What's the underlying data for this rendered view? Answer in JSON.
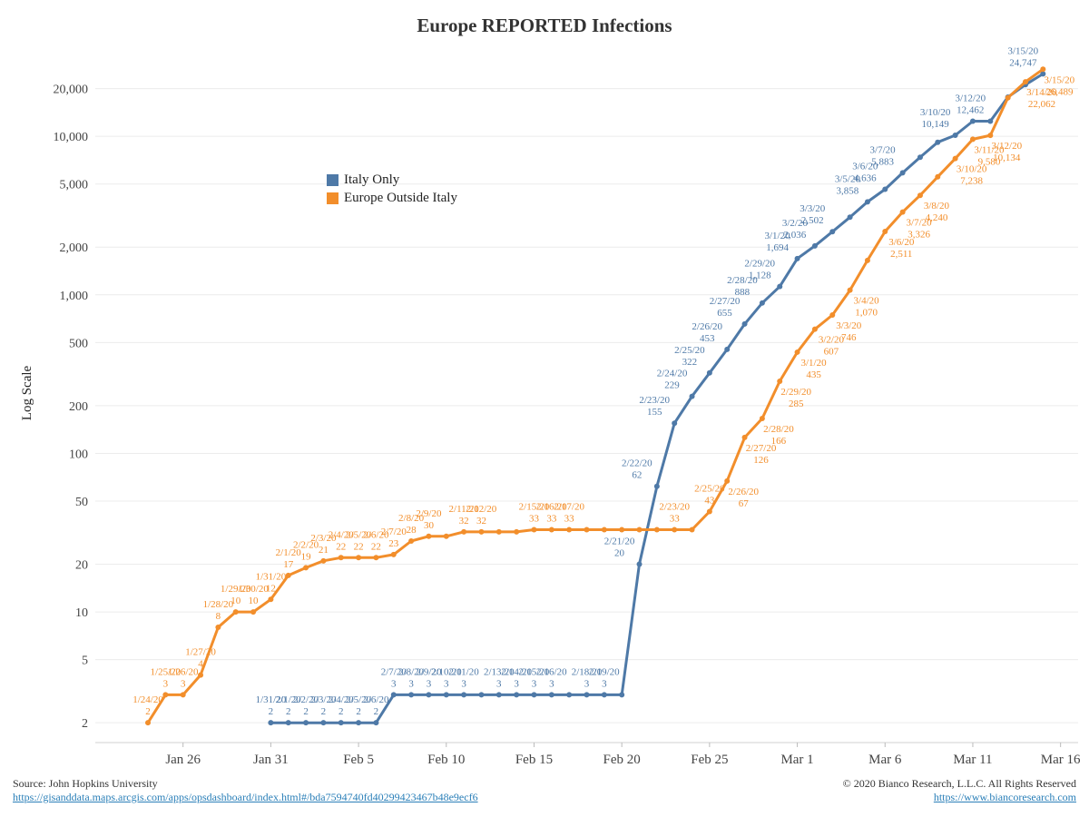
{
  "chart_data": {
    "type": "line",
    "title": "Europe REPORTED Infections",
    "ylabel": "Log Scale",
    "yscale": "log",
    "ylim": [
      1.5,
      40000
    ],
    "xlim": [
      "2020-01-21",
      "2020-03-17"
    ],
    "y_ticks": [
      {
        "value": 2,
        "label": "2"
      },
      {
        "value": 5,
        "label": "5"
      },
      {
        "value": 10,
        "label": "10"
      },
      {
        "value": 20,
        "label": "20"
      },
      {
        "value": 50,
        "label": "50"
      },
      {
        "value": 100,
        "label": "100"
      },
      {
        "value": 200,
        "label": "200"
      },
      {
        "value": 500,
        "label": "500"
      },
      {
        "value": 1000,
        "label": "1,000"
      },
      {
        "value": 2000,
        "label": "2,000"
      },
      {
        "value": 5000,
        "label": "5,000"
      },
      {
        "value": 10000,
        "label": "10,000"
      },
      {
        "value": 20000,
        "label": "20,000"
      }
    ],
    "x_ticks": [
      {
        "date": "2020-01-26",
        "label": "Jan 26"
      },
      {
        "date": "2020-01-31",
        "label": "Jan 31"
      },
      {
        "date": "2020-02-05",
        "label": "Feb 5"
      },
      {
        "date": "2020-02-10",
        "label": "Feb 10"
      },
      {
        "date": "2020-02-15",
        "label": "Feb 15"
      },
      {
        "date": "2020-02-20",
        "label": "Feb 20"
      },
      {
        "date": "2020-02-25",
        "label": "Feb 25"
      },
      {
        "date": "2020-03-01",
        "label": "Mar 1"
      },
      {
        "date": "2020-03-06",
        "label": "Mar 6"
      },
      {
        "date": "2020-03-11",
        "label": "Mar 11"
      },
      {
        "date": "2020-03-16",
        "label": "Mar 16"
      }
    ],
    "grid": true,
    "legend_position": "upper-left",
    "series": [
      {
        "name": "Italy Only",
        "color": "#4e79a7",
        "points": [
          [
            "2020-01-31",
            2
          ],
          [
            "2020-02-01",
            2
          ],
          [
            "2020-02-02",
            2
          ],
          [
            "2020-02-03",
            2
          ],
          [
            "2020-02-04",
            2
          ],
          [
            "2020-02-05",
            2
          ],
          [
            "2020-02-06",
            2
          ],
          [
            "2020-02-07",
            3
          ],
          [
            "2020-02-08",
            3
          ],
          [
            "2020-02-09",
            3
          ],
          [
            "2020-02-10",
            3
          ],
          [
            "2020-02-11",
            3
          ],
          [
            "2020-02-12",
            3
          ],
          [
            "2020-02-13",
            3
          ],
          [
            "2020-02-14",
            3
          ],
          [
            "2020-02-15",
            3
          ],
          [
            "2020-02-16",
            3
          ],
          [
            "2020-02-17",
            3
          ],
          [
            "2020-02-18",
            3
          ],
          [
            "2020-02-19",
            3
          ],
          [
            "2020-02-20",
            3
          ],
          [
            "2020-02-21",
            20
          ],
          [
            "2020-02-22",
            62
          ],
          [
            "2020-02-23",
            155
          ],
          [
            "2020-02-24",
            229
          ],
          [
            "2020-02-25",
            322
          ],
          [
            "2020-02-26",
            453
          ],
          [
            "2020-02-27",
            655
          ],
          [
            "2020-02-28",
            888
          ],
          [
            "2020-02-29",
            1128
          ],
          [
            "2020-03-01",
            1694
          ],
          [
            "2020-03-02",
            2036
          ],
          [
            "2020-03-03",
            2502
          ],
          [
            "2020-03-04",
            3089
          ],
          [
            "2020-03-05",
            3858
          ],
          [
            "2020-03-06",
            4636
          ],
          [
            "2020-03-07",
            5883
          ],
          [
            "2020-03-08",
            7375
          ],
          [
            "2020-03-09",
            9172
          ],
          [
            "2020-03-10",
            10149
          ],
          [
            "2020-03-11",
            12462
          ],
          [
            "2020-03-12",
            12462
          ],
          [
            "2020-03-13",
            17660
          ],
          [
            "2020-03-14",
            21157
          ],
          [
            "2020-03-15",
            24747
          ]
        ],
        "annotations": [
          [
            "2020-01-31",
            "1/31/20",
            "2"
          ],
          [
            "2020-02-01",
            "2/1/20",
            "2"
          ],
          [
            "2020-02-02",
            "2/2/20",
            "2"
          ],
          [
            "2020-02-03",
            "2/3/20",
            "2"
          ],
          [
            "2020-02-04",
            "2/4/20",
            "2"
          ],
          [
            "2020-02-05",
            "2/5/20",
            "2"
          ],
          [
            "2020-02-06",
            "2/6/20",
            "2"
          ],
          [
            "2020-02-07",
            "2/7/20",
            "3"
          ],
          [
            "2020-02-08",
            "2/8/20",
            "3"
          ],
          [
            "2020-02-09",
            "2/9/20",
            "3"
          ],
          [
            "2020-02-10",
            "2/10/20",
            "3"
          ],
          [
            "2020-02-11",
            "2/11/20",
            "3"
          ],
          [
            "2020-02-13",
            "2/13/20",
            "3"
          ],
          [
            "2020-02-14",
            "2/14/20",
            "3"
          ],
          [
            "2020-02-15",
            "2/15/20",
            "3"
          ],
          [
            "2020-02-16",
            "2/16/20",
            "3"
          ],
          [
            "2020-02-18",
            "2/18/20",
            "3"
          ],
          [
            "2020-02-19",
            "2/19/20",
            "3"
          ],
          [
            "2020-02-21",
            "2/21/20",
            "20"
          ],
          [
            "2020-02-22",
            "2/22/20",
            "62"
          ],
          [
            "2020-02-23",
            "2/23/20",
            "155"
          ],
          [
            "2020-02-24",
            "2/24/20",
            "229"
          ],
          [
            "2020-02-25",
            "2/25/20",
            "322"
          ],
          [
            "2020-02-26",
            "2/26/20",
            "453"
          ],
          [
            "2020-02-27",
            "2/27/20",
            "655"
          ],
          [
            "2020-02-28",
            "2/28/20",
            "888"
          ],
          [
            "2020-02-29",
            "2/29/20",
            "1,128"
          ],
          [
            "2020-03-01",
            "3/1/20",
            "1,694"
          ],
          [
            "2020-03-02",
            "3/2/20",
            "2,036"
          ],
          [
            "2020-03-03",
            "3/3/20",
            "2,502"
          ],
          [
            "2020-03-05",
            "3/5/20",
            "3,858"
          ],
          [
            "2020-03-06",
            "3/6/20",
            "4,636"
          ],
          [
            "2020-03-07",
            "3/7/20",
            "5,883"
          ],
          [
            "2020-03-10",
            "3/10/20",
            "10,149"
          ],
          [
            "2020-03-12",
            "3/12/20",
            "12,462"
          ],
          [
            "2020-03-15",
            "3/15/20",
            "24,747"
          ]
        ]
      },
      {
        "name": "Europe Outside Italy",
        "color": "#f28e2b",
        "points": [
          [
            "2020-01-24",
            2
          ],
          [
            "2020-01-25",
            3
          ],
          [
            "2020-01-26",
            3
          ],
          [
            "2020-01-27",
            4
          ],
          [
            "2020-01-28",
            8
          ],
          [
            "2020-01-29",
            10
          ],
          [
            "2020-01-30",
            10
          ],
          [
            "2020-01-31",
            12
          ],
          [
            "2020-02-01",
            17
          ],
          [
            "2020-02-02",
            19
          ],
          [
            "2020-02-03",
            21
          ],
          [
            "2020-02-04",
            22
          ],
          [
            "2020-02-05",
            22
          ],
          [
            "2020-02-06",
            22
          ],
          [
            "2020-02-07",
            23
          ],
          [
            "2020-02-08",
            28
          ],
          [
            "2020-02-09",
            30
          ],
          [
            "2020-02-10",
            30
          ],
          [
            "2020-02-11",
            32
          ],
          [
            "2020-02-12",
            32
          ],
          [
            "2020-02-13",
            32
          ],
          [
            "2020-02-14",
            32
          ],
          [
            "2020-02-15",
            33
          ],
          [
            "2020-02-16",
            33
          ],
          [
            "2020-02-17",
            33
          ],
          [
            "2020-02-18",
            33
          ],
          [
            "2020-02-19",
            33
          ],
          [
            "2020-02-20",
            33
          ],
          [
            "2020-02-21",
            33
          ],
          [
            "2020-02-22",
            33
          ],
          [
            "2020-02-23",
            33
          ],
          [
            "2020-02-24",
            33
          ],
          [
            "2020-02-25",
            43
          ],
          [
            "2020-02-26",
            67
          ],
          [
            "2020-02-27",
            126
          ],
          [
            "2020-02-28",
            166
          ],
          [
            "2020-02-29",
            285
          ],
          [
            "2020-03-01",
            435
          ],
          [
            "2020-03-02",
            607
          ],
          [
            "2020-03-03",
            746
          ],
          [
            "2020-03-04",
            1070
          ],
          [
            "2020-03-05",
            1650
          ],
          [
            "2020-03-06",
            2511
          ],
          [
            "2020-03-07",
            3326
          ],
          [
            "2020-03-08",
            4240
          ],
          [
            "2020-03-09",
            5550
          ],
          [
            "2020-03-10",
            7238
          ],
          [
            "2020-03-11",
            9580
          ],
          [
            "2020-03-12",
            10134
          ],
          [
            "2020-03-13",
            17500
          ],
          [
            "2020-03-14",
            22062
          ],
          [
            "2020-03-15",
            26489
          ]
        ],
        "annotations": [
          [
            "2020-01-24",
            "1/24/20",
            "2"
          ],
          [
            "2020-01-25",
            "1/25/20",
            "3"
          ],
          [
            "2020-01-26",
            "1/26/20",
            "3"
          ],
          [
            "2020-01-27",
            "1/27/20",
            "4"
          ],
          [
            "2020-01-28",
            "1/28/20",
            "8"
          ],
          [
            "2020-01-29",
            "1/29/20",
            "10"
          ],
          [
            "2020-01-30",
            "1/30/20",
            "10"
          ],
          [
            "2020-01-31",
            "1/31/20",
            "12"
          ],
          [
            "2020-02-01",
            "2/1/20",
            "17"
          ],
          [
            "2020-02-02",
            "2/2/20",
            "19"
          ],
          [
            "2020-02-03",
            "2/3/20",
            "21"
          ],
          [
            "2020-02-04",
            "2/4/20",
            "22"
          ],
          [
            "2020-02-05",
            "2/5/20",
            "22"
          ],
          [
            "2020-02-06",
            "2/6/20",
            "22"
          ],
          [
            "2020-02-07",
            "2/7/20",
            "23"
          ],
          [
            "2020-02-08",
            "2/8/20",
            "28"
          ],
          [
            "2020-02-09",
            "2/9/20",
            "30"
          ],
          [
            "2020-02-11",
            "2/11/20",
            "32"
          ],
          [
            "2020-02-12",
            "2/12/20",
            "32"
          ],
          [
            "2020-02-15",
            "2/15/20",
            "33"
          ],
          [
            "2020-02-16",
            "2/16/20",
            "33"
          ],
          [
            "2020-02-17",
            "2/17/20",
            "33"
          ],
          [
            "2020-02-23",
            "2/23/20",
            "33"
          ],
          [
            "2020-02-25",
            "2/25/20",
            "43"
          ],
          [
            "2020-02-26",
            "2/26/20",
            "67"
          ],
          [
            "2020-02-27",
            "2/27/20",
            "126"
          ],
          [
            "2020-02-28",
            "2/28/20",
            "166"
          ],
          [
            "2020-02-29",
            "2/29/20",
            "285"
          ],
          [
            "2020-03-01",
            "3/1/20",
            "435"
          ],
          [
            "2020-03-02",
            "3/2/20",
            "607"
          ],
          [
            "2020-03-03",
            "3/3/20",
            "746"
          ],
          [
            "2020-03-04",
            "3/4/20",
            "1,070"
          ],
          [
            "2020-03-06",
            "3/6/20",
            "2,511"
          ],
          [
            "2020-03-07",
            "3/7/20",
            "3,326"
          ],
          [
            "2020-03-08",
            "3/8/20",
            "4,240"
          ],
          [
            "2020-03-10",
            "3/10/20",
            "7,238"
          ],
          [
            "2020-03-11",
            "3/11/20",
            "9,580"
          ],
          [
            "2020-03-12",
            "3/12/20",
            "10,134"
          ],
          [
            "2020-03-14",
            "3/14/20",
            "22,062"
          ],
          [
            "2020-03-15",
            "3/15/20",
            "26,489"
          ]
        ]
      }
    ]
  },
  "footer": {
    "source_label": "Source: John Hopkins University",
    "source_url": "https://gisanddata.maps.arcgis.com/apps/opsdashboard/index.html#/bda7594740fd40299423467b48e9ecf6",
    "copyright": "© 2020 Bianco Research, L.L.C. All Rights Reserved",
    "site_url": "https://www.biancoresearch.com"
  }
}
